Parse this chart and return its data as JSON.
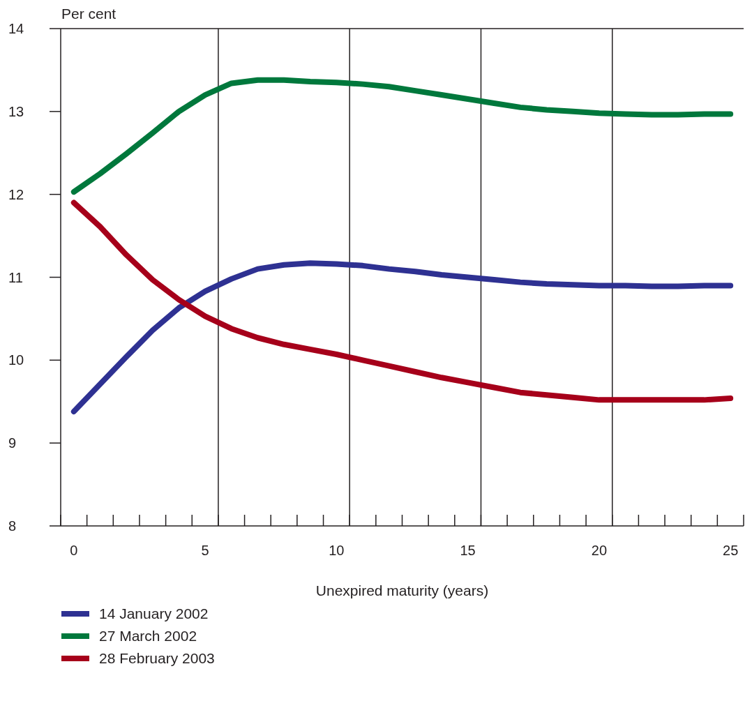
{
  "chart_data": {
    "type": "line",
    "ylabel": "Per cent",
    "xlabel": "Unexpired maturity (years)",
    "x": [
      0,
      1,
      2,
      3,
      4,
      5,
      6,
      7,
      8,
      9,
      10,
      11,
      12,
      13,
      14,
      15,
      16,
      17,
      18,
      19,
      20,
      21,
      22,
      23,
      24,
      25
    ],
    "series": [
      {
        "name": "14 January 2002",
        "color": "#2e3192",
        "values": [
          9.38,
          9.71,
          10.04,
          10.36,
          10.63,
          10.83,
          10.98,
          11.1,
          11.15,
          11.17,
          11.16,
          11.14,
          11.1,
          11.07,
          11.03,
          11.0,
          10.97,
          10.94,
          10.92,
          10.91,
          10.9,
          10.9,
          10.89,
          10.89,
          10.9,
          10.9
        ]
      },
      {
        "name": "27 March 2002",
        "color": "#00783c",
        "values": [
          12.03,
          12.25,
          12.49,
          12.74,
          13.0,
          13.2,
          13.34,
          13.38,
          13.38,
          13.36,
          13.35,
          13.33,
          13.3,
          13.25,
          13.2,
          13.15,
          13.1,
          13.05,
          13.02,
          13.0,
          12.98,
          12.97,
          12.96,
          12.96,
          12.97,
          12.97
        ]
      },
      {
        "name": "28 February 2003",
        "color": "#a6001a",
        "values": [
          11.9,
          11.61,
          11.27,
          10.97,
          10.73,
          10.53,
          10.38,
          10.27,
          10.19,
          10.13,
          10.07,
          10.0,
          9.93,
          9.86,
          9.79,
          9.73,
          9.67,
          9.61,
          9.58,
          9.55,
          9.52,
          9.52,
          9.52,
          9.52,
          9.52,
          9.54
        ]
      }
    ],
    "xlim": [
      -0.5,
      25.5
    ],
    "xticks": [
      {
        "value": -0.5,
        "label": null
      },
      0,
      {
        "value": 0.5,
        "label": null
      },
      {
        "value": 1.5,
        "label": null
      },
      {
        "value": 2.5,
        "label": null
      },
      {
        "value": 3.5,
        "label": null
      },
      {
        "value": 4.5,
        "label": null
      },
      5,
      {
        "value": 5.5,
        "label": null
      },
      {
        "value": 6.5,
        "label": null
      },
      {
        "value": 7.5,
        "label": null
      },
      {
        "value": 8.5,
        "label": null
      },
      {
        "value": 9.5,
        "label": null
      },
      10,
      {
        "value": 10.5,
        "label": null
      },
      {
        "value": 11.5,
        "label": null
      },
      {
        "value": 12.5,
        "label": null
      },
      {
        "value": 13.5,
        "label": null
      },
      {
        "value": 14.5,
        "label": null
      },
      15,
      {
        "value": 15.5,
        "label": null
      },
      {
        "value": 16.5,
        "label": null
      },
      {
        "value": 17.5,
        "label": null
      },
      {
        "value": 18.5,
        "label": null
      },
      {
        "value": 19.5,
        "label": null
      },
      20,
      {
        "value": 20.5,
        "label": null
      },
      {
        "value": 21.5,
        "label": null
      },
      {
        "value": 22.5,
        "label": null
      },
      {
        "value": 23.5,
        "label": null
      },
      {
        "value": 24.5,
        "label": null
      },
      25,
      {
        "value": 25.5,
        "label": null
      }
    ],
    "ylim": [
      8,
      14
    ],
    "yticks": [
      8,
      9,
      10,
      11,
      12,
      13,
      14
    ],
    "ref_lines": [
      {
        "axis": "x",
        "value": 5.5,
        "color": "#231f20"
      },
      {
        "axis": "x",
        "value": 10.5,
        "color": "#231f20"
      },
      {
        "axis": "x",
        "value": 15.5,
        "color": "#231f20"
      },
      {
        "axis": "x",
        "value": 20.5,
        "color": "#231f20"
      }
    ],
    "grid": false,
    "legend": "bottom left",
    "marker": "none",
    "line_style": "solid"
  }
}
